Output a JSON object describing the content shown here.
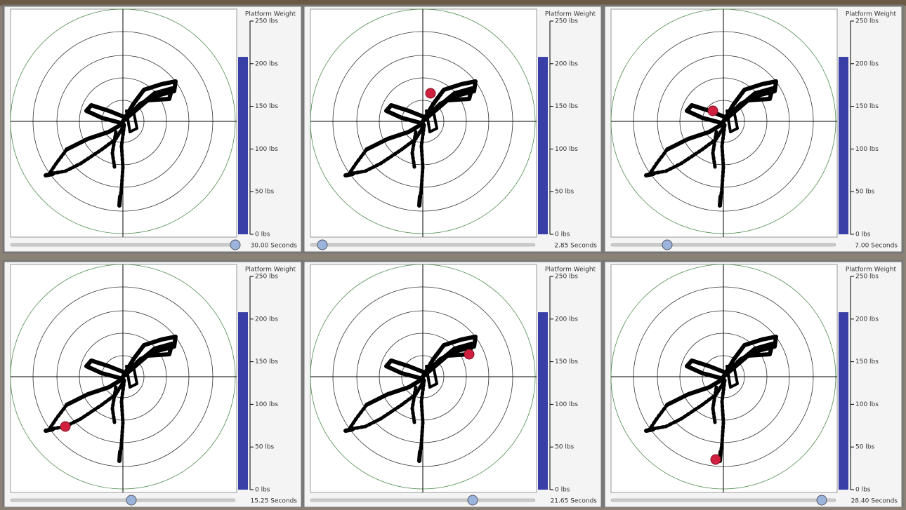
{
  "panels": [
    {
      "title": "Platform Weight",
      "ylim": [
        0,
        250
      ],
      "yticks": [
        {
          "value": 250,
          "label": "250 lbs"
        },
        {
          "value": 200,
          "label": "200 lbs"
        },
        {
          "value": 150,
          "label": "150 lbs"
        },
        {
          "value": 100,
          "label": "100 lbs"
        },
        {
          "value": 50,
          "label": "50 lbs"
        },
        {
          "value": 0,
          "label": "0 lbs"
        }
      ],
      "weight": 208,
      "time_label": "30.00 Seconds"
    },
    {
      "title": "Platform Weight",
      "ylim": [
        0,
        250
      ],
      "yticks": [
        {
          "value": 250,
          "label": "250 lbs"
        },
        {
          "value": 200,
          "label": "200 lbs"
        },
        {
          "value": 150,
          "label": "150 lbs"
        },
        {
          "value": 100,
          "label": "100 lbs"
        },
        {
          "value": 50,
          "label": "50 lbs"
        },
        {
          "value": 0,
          "label": "0 lbs"
        }
      ],
      "weight": 208,
      "time_label": "2.85 Seconds"
    },
    {
      "title": "Platform Weight",
      "ylim": [
        0,
        250
      ],
      "yticks": [
        {
          "value": 250,
          "label": "250 lbs"
        },
        {
          "value": 200,
          "label": "200 lbs"
        },
        {
          "value": 150,
          "label": "150 lbs"
        },
        {
          "value": 100,
          "label": "100 lbs"
        },
        {
          "value": 50,
          "label": "50 lbs"
        },
        {
          "value": 0,
          "label": "0 lbs"
        }
      ],
      "weight": 208,
      "time_label": "7.00 Seconds"
    },
    {
      "title": "Platform Weight",
      "ylim": [
        0,
        250
      ],
      "yticks": [
        {
          "value": 250,
          "label": "250 lbs"
        },
        {
          "value": 200,
          "label": "200 lbs"
        },
        {
          "value": 150,
          "label": "150 lbs"
        },
        {
          "value": 100,
          "label": "100 lbs"
        },
        {
          "value": 50,
          "label": "50 lbs"
        },
        {
          "value": 0,
          "label": "0 lbs"
        }
      ],
      "weight": 208,
      "time_label": "15.25 Seconds"
    },
    {
      "title": "Platform Weight",
      "ylim": [
        0,
        250
      ],
      "yticks": [
        {
          "value": 250,
          "label": "250 lbs"
        },
        {
          "value": 200,
          "label": "200 lbs"
        },
        {
          "value": 150,
          "label": "150 lbs"
        },
        {
          "value": 100,
          "label": "100 lbs"
        },
        {
          "value": 50,
          "label": "50 lbs"
        },
        {
          "value": 0,
          "label": "0 lbs"
        }
      ],
      "weight": 208,
      "time_label": "21.65 Seconds"
    },
    {
      "title": "Platform Weight",
      "ylim": [
        0,
        250
      ],
      "yticks": [
        {
          "value": 250,
          "label": "250 lbs"
        },
        {
          "value": 200,
          "label": "200 lbs"
        },
        {
          "value": 150,
          "label": "150 lbs"
        },
        {
          "value": 100,
          "label": "100 lbs"
        },
        {
          "value": 50,
          "label": "50 lbs"
        },
        {
          "value": 0,
          "label": "0 lbs"
        }
      ],
      "weight": 208,
      "time_label": "28.40 Seconds"
    }
  ]
}
